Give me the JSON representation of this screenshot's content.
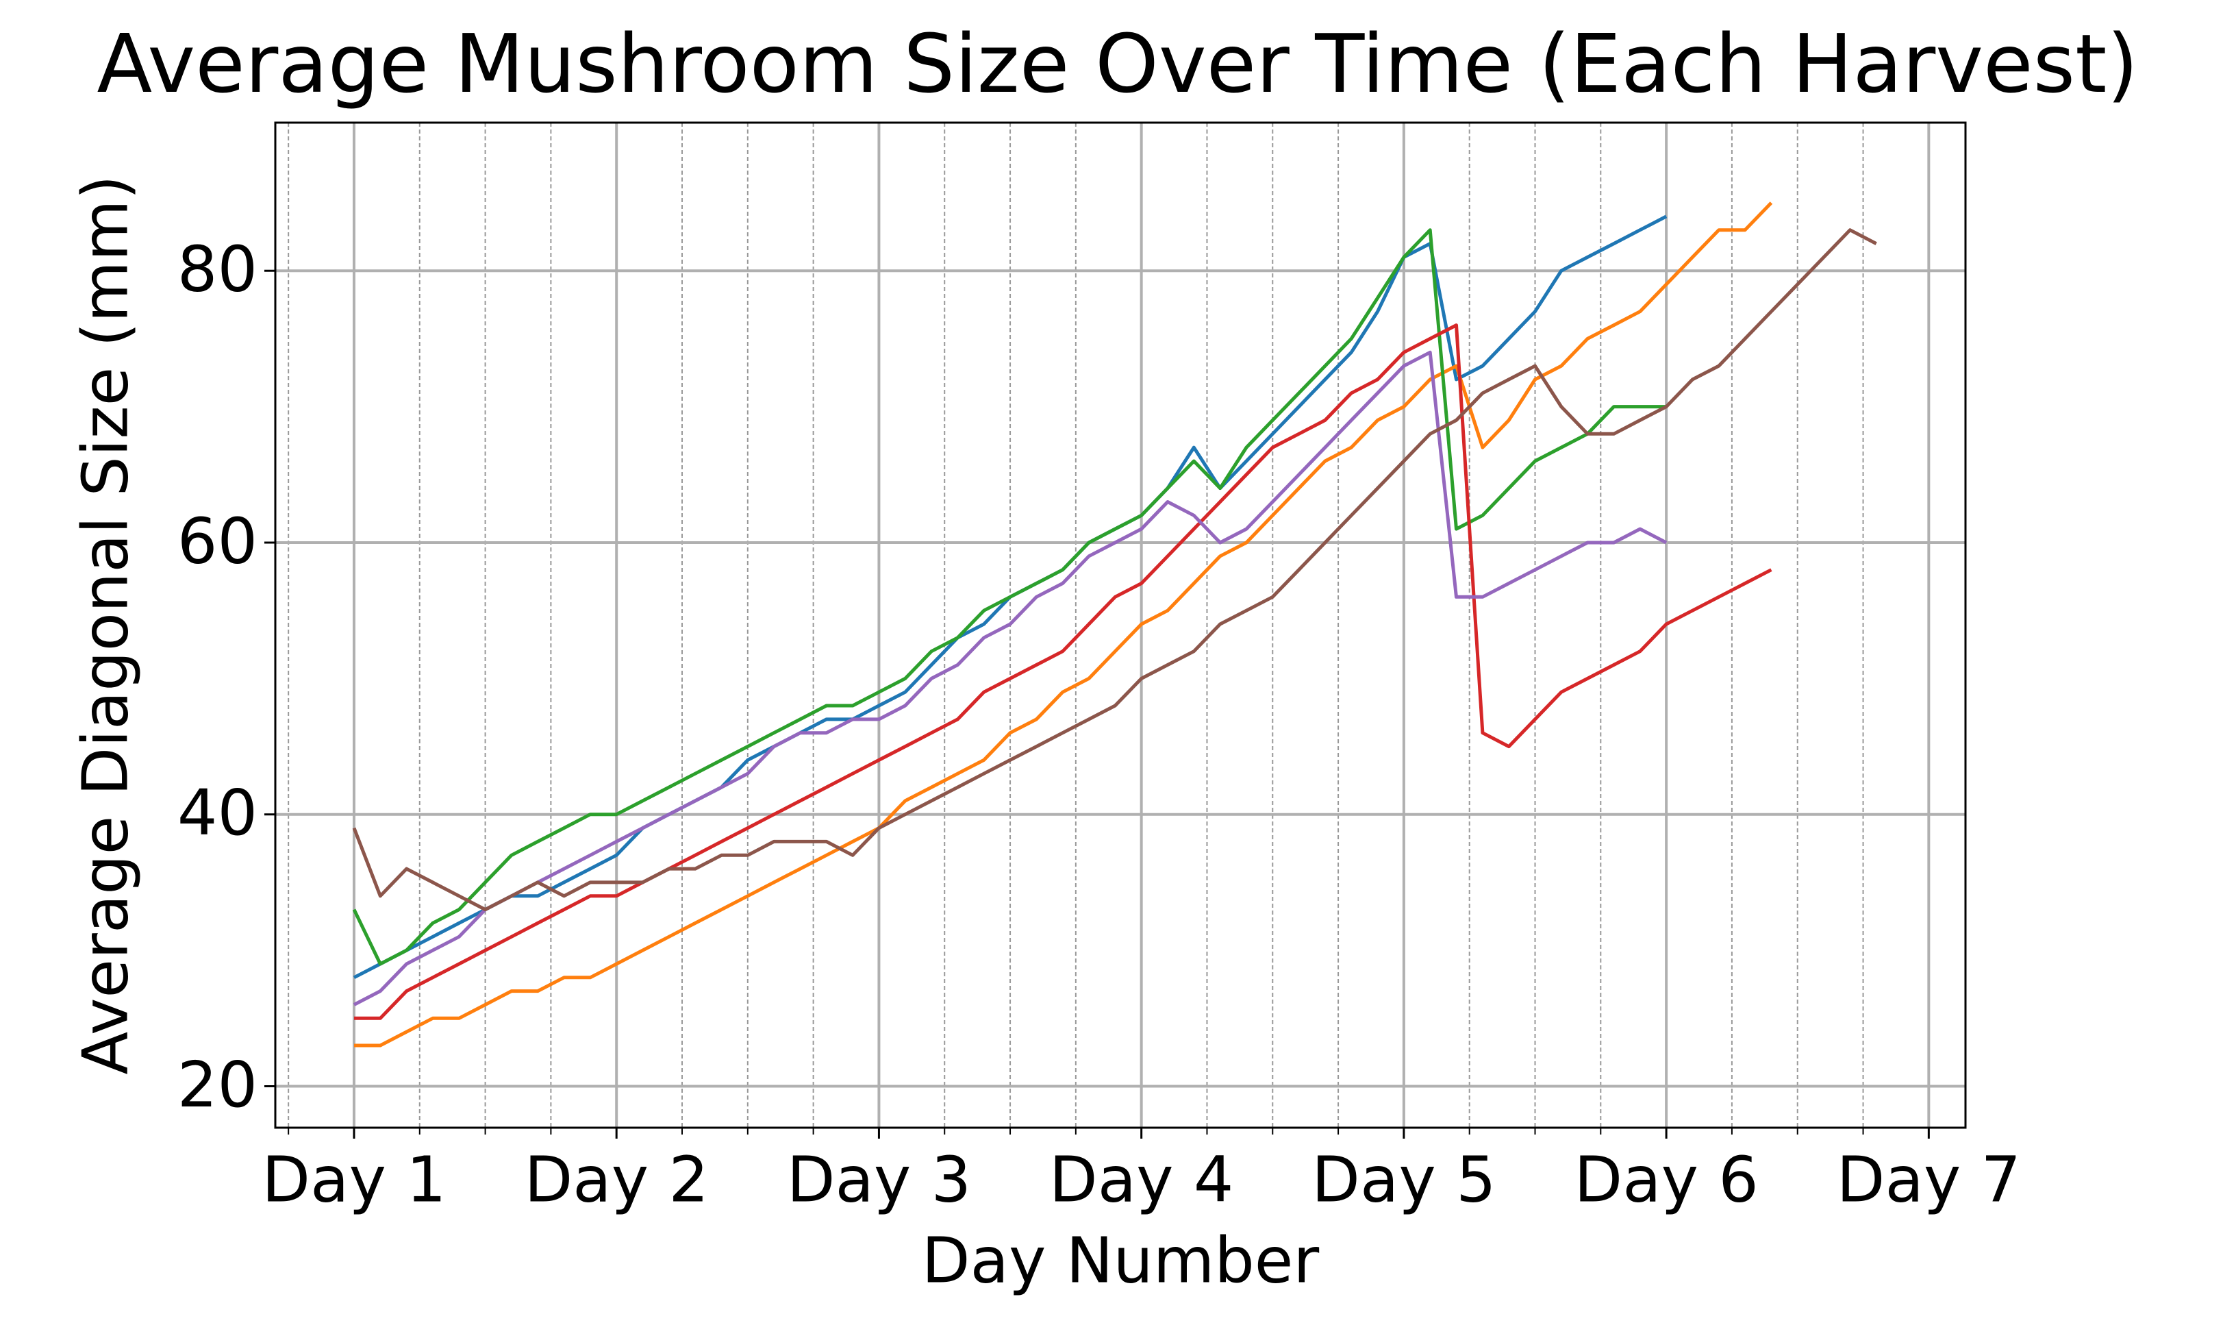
{
  "chart_data": {
    "type": "line",
    "title": "Average Mushroom Size Over Time (Each Harvest)",
    "x_label": "Day Number",
    "y_label": "Average Diagonal Size (mm)",
    "xlim": [
      0.7,
      7.14
    ],
    "ylim": [
      16.95,
      90.9
    ],
    "xticks": [
      {
        "value": 1,
        "label": "Day 1"
      },
      {
        "value": 2,
        "label": "Day 2"
      },
      {
        "value": 3,
        "label": "Day 3"
      },
      {
        "value": 4,
        "label": "Day 4"
      },
      {
        "value": 5,
        "label": "Day 5"
      },
      {
        "value": 6,
        "label": "Day 6"
      },
      {
        "value": 7,
        "label": "Day 7"
      }
    ],
    "xminorticks": [
      0.75,
      1.25,
      1.5,
      1.75,
      2.25,
      2.5,
      2.75,
      3.25,
      3.5,
      3.75,
      4.25,
      4.5,
      4.75,
      5.25,
      5.5,
      5.75,
      6.25,
      6.5,
      6.75
    ],
    "yticks": [
      20,
      40,
      60,
      80
    ],
    "grid": true,
    "x": [
      1.0,
      1.1,
      1.2,
      1.3,
      1.4,
      1.5,
      1.6,
      1.7,
      1.8,
      1.9,
      2.0,
      2.1,
      2.2,
      2.3,
      2.4,
      2.5,
      2.6,
      2.7,
      2.8,
      2.9,
      3.0,
      3.1,
      3.2,
      3.3,
      3.4,
      3.5,
      3.6,
      3.7,
      3.8,
      3.9,
      4.0,
      4.1,
      4.2,
      4.3,
      4.4,
      4.5,
      4.6,
      4.7,
      4.8,
      4.9,
      5.0,
      5.1,
      5.2,
      5.3,
      5.4,
      5.5,
      5.6,
      5.7,
      5.8,
      5.9,
      6.0,
      6.1,
      6.2,
      6.3,
      6.4,
      6.5,
      6.6,
      6.7,
      6.8
    ],
    "series": [
      {
        "color": "#1f77b4",
        "values": [
          28,
          29,
          30,
          31,
          32,
          33,
          34,
          34,
          35,
          36,
          37,
          39,
          40,
          41,
          42,
          44,
          45,
          46,
          47,
          47,
          48,
          49,
          51,
          53,
          54,
          56,
          57,
          58,
          60,
          61,
          62,
          64,
          67,
          64,
          66,
          68,
          70,
          72,
          74,
          77,
          81,
          82,
          72,
          73,
          75,
          77,
          80,
          81,
          82,
          83,
          84,
          null,
          null,
          null,
          null,
          null,
          null,
          null,
          null
        ]
      },
      {
        "color": "#ff7f0e",
        "values": [
          23,
          23,
          24,
          25,
          25,
          26,
          27,
          27,
          28,
          28,
          29,
          30,
          31,
          32,
          33,
          34,
          35,
          36,
          37,
          38,
          39,
          41,
          42,
          43,
          44,
          46,
          47,
          49,
          50,
          52,
          54,
          55,
          57,
          59,
          60,
          62,
          64,
          66,
          67,
          69,
          70,
          72,
          73,
          67,
          69,
          72,
          73,
          75,
          76,
          77,
          79,
          81,
          83,
          83,
          85,
          null,
          null,
          null,
          null
        ]
      },
      {
        "color": "#2ca02c",
        "values": [
          33,
          29,
          30,
          32,
          33,
          35,
          37,
          38,
          39,
          40,
          40,
          41,
          42,
          43,
          44,
          45,
          46,
          47,
          48,
          48,
          49,
          50,
          52,
          53,
          55,
          56,
          57,
          58,
          60,
          61,
          62,
          64,
          66,
          64,
          67,
          69,
          71,
          73,
          75,
          78,
          81,
          83,
          61,
          62,
          64,
          66,
          67,
          68,
          70,
          70,
          70,
          null,
          null,
          null,
          null,
          null,
          null,
          null,
          null
        ]
      },
      {
        "color": "#d62728",
        "values": [
          25,
          25,
          27,
          28,
          29,
          30,
          31,
          32,
          33,
          34,
          34,
          35,
          36,
          37,
          38,
          39,
          40,
          41,
          42,
          43,
          44,
          45,
          46,
          47,
          49,
          50,
          51,
          52,
          54,
          56,
          57,
          59,
          61,
          63,
          65,
          67,
          68,
          69,
          71,
          72,
          74,
          75,
          76,
          46,
          45,
          47,
          49,
          50,
          51,
          52,
          54,
          55,
          56,
          57,
          58,
          null,
          null,
          null,
          null
        ]
      },
      {
        "color": "#9467bd",
        "values": [
          26,
          27,
          29,
          30,
          31,
          33,
          34,
          35,
          36,
          37,
          38,
          39,
          40,
          41,
          42,
          43,
          45,
          46,
          46,
          47,
          47,
          48,
          50,
          51,
          53,
          54,
          56,
          57,
          59,
          60,
          61,
          63,
          62,
          60,
          61,
          63,
          65,
          67,
          69,
          71,
          73,
          74,
          56,
          56,
          57,
          58,
          59,
          60,
          60,
          61,
          60,
          null,
          null,
          null,
          null,
          null,
          null,
          null,
          null
        ]
      },
      {
        "color": "#8c564b",
        "values": [
          39,
          34,
          36,
          35,
          34,
          33,
          34,
          35,
          34,
          35,
          35,
          35,
          36,
          36,
          37,
          37,
          38,
          38,
          38,
          37,
          39,
          40,
          41,
          42,
          43,
          44,
          45,
          46,
          47,
          48,
          50,
          51,
          52,
          54,
          55,
          56,
          58,
          60,
          62,
          64,
          66,
          68,
          69,
          71,
          72,
          73,
          70,
          68,
          68,
          69,
          70,
          72,
          73,
          75,
          77,
          79,
          81,
          83,
          82
        ]
      }
    ]
  }
}
